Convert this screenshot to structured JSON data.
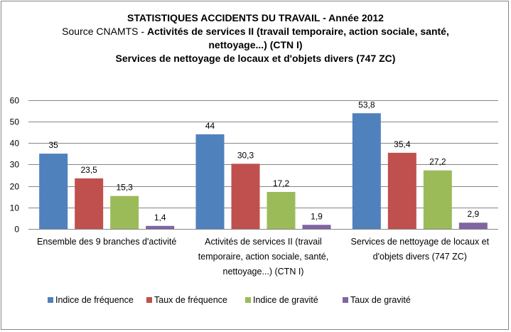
{
  "chart_data": {
    "type": "bar",
    "title": "STATISTIQUES ACCIDENTS DU TRAVAIL - Année 2012",
    "subtitle_source_prefix": "Source CNAMTS - ",
    "subtitle_line2_bold": "Activités de services II (travail temporaire, action sociale, santé,",
    "subtitle_line3": "nettoyage...) (CTN I)",
    "subtitle_line4": "Services de nettoyage de locaux et d'objets divers (747 ZC)",
    "xlabel": "",
    "ylabel": "",
    "ylim": [
      0,
      60
    ],
    "yticks": [
      0,
      10,
      20,
      30,
      40,
      50,
      60
    ],
    "grid": true,
    "legend_position": "bottom",
    "categories": [
      [
        "Ensemble des 9 branches d'activité"
      ],
      [
        "Activités de services II (travail",
        "temporaire, action sociale, santé,",
        "nettoyage...) (CTN I)"
      ],
      [
        "Services de nettoyage de locaux et",
        "d'objets divers (747 ZC)"
      ]
    ],
    "series": [
      {
        "name": "Indice de fréquence",
        "color": "#4F81BD",
        "values": [
          35,
          44,
          53.8
        ],
        "labels": [
          "35",
          "44",
          "53,8"
        ]
      },
      {
        "name": "Taux de fréquence",
        "color": "#C0504D",
        "values": [
          23.5,
          30.3,
          35.4
        ],
        "labels": [
          "23,5",
          "30,3",
          "35,4"
        ]
      },
      {
        "name": "Indice de gravité",
        "color": "#9BBB59",
        "values": [
          15.3,
          17.2,
          27.2
        ],
        "labels": [
          "15,3",
          "17,2",
          "27,2"
        ]
      },
      {
        "name": "Taux de gravité",
        "color": "#8064A2",
        "values": [
          1.4,
          1.9,
          2.9
        ],
        "labels": [
          "1,4",
          "1,9",
          "2,9"
        ]
      }
    ],
    "gridline_color": "#868686"
  }
}
